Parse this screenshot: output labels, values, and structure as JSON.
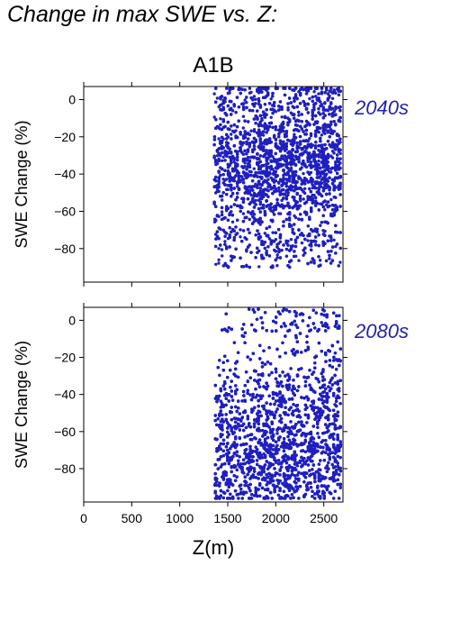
{
  "page": {
    "title": "Change in max SWE vs. Z:"
  },
  "colors": {
    "points": "#1f1fc0",
    "period_label": "#2323a8",
    "axes": "#000000"
  },
  "chart_data": [
    {
      "type": "scatter",
      "title": "A1B",
      "panel_label": "2040s",
      "xlabel": "",
      "ylabel": "SWE Change (%)",
      "xlim": [
        0,
        2700
      ],
      "ylim": [
        -98,
        7
      ],
      "x_ticks": [
        0,
        500,
        1000,
        1500,
        2000,
        2500
      ],
      "x_tick_labels_shown": false,
      "y_ticks": [
        0,
        -20,
        -40,
        -60,
        -80
      ],
      "y_tick_labels": [
        "0",
        "−20",
        "−40",
        "−60",
        "−80"
      ],
      "grid": false,
      "x_range_of_points": [
        1360,
        2680
      ],
      "y_range_of_points": [
        -90,
        6
      ],
      "point_count_estimate": 5000
    },
    {
      "type": "scatter",
      "title": "",
      "panel_label": "2080s",
      "xlabel": "Z(m)",
      "ylabel": "SWE Change (%)",
      "xlim": [
        0,
        2700
      ],
      "ylim": [
        -98,
        7
      ],
      "x_ticks": [
        0,
        500,
        1000,
        1500,
        2000,
        2500
      ],
      "x_tick_labels": [
        "0",
        "500",
        "1000",
        "1500",
        "2000",
        "2500"
      ],
      "x_tick_labels_shown": true,
      "y_ticks": [
        0,
        -20,
        -40,
        -60,
        -80
      ],
      "y_tick_labels": [
        "0",
        "−20",
        "−40",
        "−60",
        "−80"
      ],
      "grid": false,
      "x_range_of_points": [
        1360,
        2680
      ],
      "y_range_of_points": [
        -96,
        6
      ],
      "point_count_estimate": 5500
    }
  ]
}
